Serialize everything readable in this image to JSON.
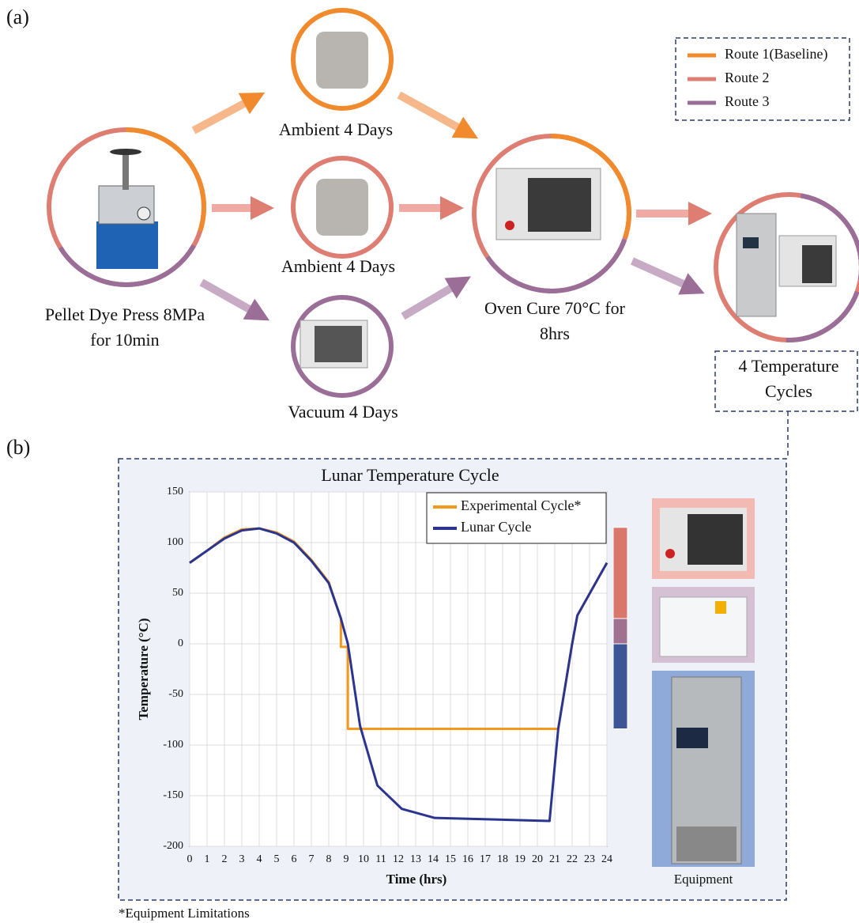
{
  "panel_a": {
    "label": "(a)",
    "legend": [
      {
        "name": "Route 1(Baseline)",
        "color": "#f08a2c"
      },
      {
        "name": "Route 2",
        "color": "#de7d72"
      },
      {
        "name": "Route 3",
        "color": "#9a6e96"
      }
    ],
    "nodes": [
      {
        "lines": [
          "Pellet Dye Press  8MPa",
          "for 10min"
        ]
      },
      {
        "lines": [
          "Ambient 4 Days"
        ]
      },
      {
        "lines": [
          "Ambient 4 Days"
        ]
      },
      {
        "lines": [
          "Vacuum 4 Days"
        ]
      },
      {
        "lines": [
          "Oven Cure 70°C for",
          "8hrs"
        ]
      },
      {
        "lines": [
          "4 Temperature",
          "Cycles"
        ]
      }
    ]
  },
  "panel_b": {
    "label": "(b)",
    "equipment_label": "Equipment",
    "footnote": "*Equipment Limitations"
  },
  "chart_data": {
    "type": "line",
    "title": "Lunar Temperature Cycle",
    "x_label": "Time (hrs)",
    "y_label": "Temperature (°C)",
    "xlim": [
      0,
      24
    ],
    "xticks": [
      0,
      1,
      2,
      3,
      4,
      5,
      6,
      7,
      8,
      9,
      10,
      11,
      12,
      13,
      14,
      15,
      16,
      17,
      18,
      19,
      20,
      21,
      22,
      23,
      24
    ],
    "ylim": [
      -200,
      150
    ],
    "yticks": [
      -200,
      -150,
      -100,
      -50,
      0,
      50,
      100,
      150
    ],
    "grid": true,
    "legend": "top-right",
    "series": [
      {
        "name": "Experimental Cycle*",
        "color": "#f39a1e",
        "x": [
          0,
          1,
          2,
          3,
          4,
          5,
          6,
          7,
          8,
          8.7,
          8.7,
          9.1,
          9.1,
          21.2,
          22,
          22.3,
          24
        ],
        "values": [
          80,
          92,
          105,
          113,
          114,
          110,
          101,
          83,
          61,
          25,
          -3,
          -3,
          -84,
          -84,
          0,
          28,
          80
        ]
      },
      {
        "name": "Lunar Cycle",
        "color": "#2b3590",
        "x": [
          0,
          1,
          2,
          3,
          4,
          5,
          6,
          7,
          8,
          8.7,
          9.1,
          9.8,
          10.8,
          12.2,
          14.1,
          20.7,
          21.2,
          22,
          22.3,
          24
        ],
        "values": [
          80,
          92,
          104,
          112,
          114,
          109,
          100,
          82,
          60,
          25,
          0,
          -81,
          -140,
          -163,
          -172,
          -175,
          -84,
          0,
          28,
          80
        ]
      }
    ],
    "bands": [
      {
        "from": 115,
        "to": 25,
        "color": "#d9776d"
      },
      {
        "from": 25,
        "to": 0,
        "color": "#a0728f"
      },
      {
        "from": 0,
        "to": -84,
        "color": "#3d5596"
      }
    ]
  }
}
